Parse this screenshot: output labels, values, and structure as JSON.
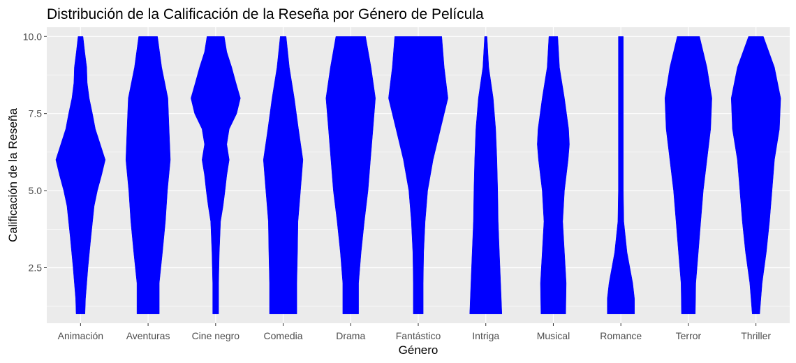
{
  "chart_data": {
    "type": "violin",
    "title": "Distribución de la Calificación de la Reseña por Género de Película",
    "xlabel": "Género",
    "ylabel": "Calificación de la Reseña",
    "ylim": [
      0.7,
      10.3
    ],
    "yticks": [
      2.5,
      5.0,
      7.5,
      10.0
    ],
    "ytick_labels": [
      "2.5",
      "5.0",
      "7.5",
      "10.0"
    ],
    "fill_color": "#0000ff",
    "panel_color": "#ebebeb",
    "grid": true,
    "legend": "none",
    "categories": [
      "Animación",
      "Aventuras",
      "Cine negro",
      "Comedia",
      "Drama",
      "Fantástico",
      "Intriga",
      "Musical",
      "Romance",
      "Terror",
      "Thriller"
    ],
    "series": [
      {
        "values": [
          {
            "y": 1,
            "d": 0.18
          },
          {
            "y": 1.5,
            "d": 0.2
          },
          {
            "y": 2.5,
            "d": 0.3
          },
          {
            "y": 3.5,
            "d": 0.42
          },
          {
            "y": 4.5,
            "d": 0.55
          },
          {
            "y": 5,
            "d": 0.68
          },
          {
            "y": 5.5,
            "d": 0.85
          },
          {
            "y": 6,
            "d": 1
          },
          {
            "y": 6.5,
            "d": 0.8
          },
          {
            "y": 7,
            "d": 0.6
          },
          {
            "y": 7.5,
            "d": 0.48
          },
          {
            "y": 8,
            "d": 0.35
          },
          {
            "y": 8.5,
            "d": 0.27
          },
          {
            "y": 9,
            "d": 0.25
          },
          {
            "y": 9.5,
            "d": 0.17
          },
          {
            "y": 10,
            "d": 0.1
          }
        ]
      },
      {
        "values": [
          {
            "y": 1,
            "d": 0.45
          },
          {
            "y": 2,
            "d": 0.45
          },
          {
            "y": 3,
            "d": 0.58
          },
          {
            "y": 4,
            "d": 0.7
          },
          {
            "y": 5,
            "d": 0.78
          },
          {
            "y": 6,
            "d": 0.9
          },
          {
            "y": 7,
            "d": 0.85
          },
          {
            "y": 8,
            "d": 0.8
          },
          {
            "y": 9,
            "d": 0.55
          },
          {
            "y": 10,
            "d": 0.38
          }
        ]
      },
      {
        "values": [
          {
            "y": 1,
            "d": 0.12
          },
          {
            "y": 2,
            "d": 0.12
          },
          {
            "y": 3,
            "d": 0.15
          },
          {
            "y": 4,
            "d": 0.2
          },
          {
            "y": 4.5,
            "d": 0.3
          },
          {
            "y": 5,
            "d": 0.38
          },
          {
            "y": 5.5,
            "d": 0.45
          },
          {
            "y": 6,
            "d": 0.55
          },
          {
            "y": 6.5,
            "d": 0.45
          },
          {
            "y": 7,
            "d": 0.55
          },
          {
            "y": 7.5,
            "d": 0.85
          },
          {
            "y": 8,
            "d": 1
          },
          {
            "y": 8.5,
            "d": 0.82
          },
          {
            "y": 9,
            "d": 0.65
          },
          {
            "y": 9.5,
            "d": 0.45
          },
          {
            "y": 10,
            "d": 0.35
          }
        ]
      },
      {
        "values": [
          {
            "y": 1,
            "d": 0.55
          },
          {
            "y": 2,
            "d": 0.55
          },
          {
            "y": 3,
            "d": 0.58
          },
          {
            "y": 4,
            "d": 0.6
          },
          {
            "y": 5,
            "d": 0.7
          },
          {
            "y": 6,
            "d": 0.8
          },
          {
            "y": 7,
            "d": 0.62
          },
          {
            "y": 8,
            "d": 0.45
          },
          {
            "y": 9,
            "d": 0.25
          },
          {
            "y": 10,
            "d": 0.12
          }
        ]
      },
      {
        "values": [
          {
            "y": 1,
            "d": 0.32
          },
          {
            "y": 2,
            "d": 0.32
          },
          {
            "y": 3,
            "d": 0.42
          },
          {
            "y": 4,
            "d": 0.55
          },
          {
            "y": 5,
            "d": 0.7
          },
          {
            "y": 6,
            "d": 0.8
          },
          {
            "y": 7,
            "d": 0.9
          },
          {
            "y": 8,
            "d": 1
          },
          {
            "y": 9,
            "d": 0.82
          },
          {
            "y": 10,
            "d": 0.6
          }
        ]
      },
      {
        "values": [
          {
            "y": 1,
            "d": 0.2
          },
          {
            "y": 2,
            "d": 0.2
          },
          {
            "y": 3,
            "d": 0.22
          },
          {
            "y": 4,
            "d": 0.28
          },
          {
            "y": 5,
            "d": 0.38
          },
          {
            "y": 6,
            "d": 0.6
          },
          {
            "y": 7,
            "d": 0.9
          },
          {
            "y": 8,
            "d": 1.2
          },
          {
            "y": 9,
            "d": 1.05
          },
          {
            "y": 10,
            "d": 0.95
          }
        ]
      },
      {
        "values": [
          {
            "y": 1,
            "d": 0.65
          },
          {
            "y": 2,
            "d": 0.6
          },
          {
            "y": 3,
            "d": 0.55
          },
          {
            "y": 4,
            "d": 0.5
          },
          {
            "y": 5,
            "d": 0.48
          },
          {
            "y": 6,
            "d": 0.45
          },
          {
            "y": 7,
            "d": 0.4
          },
          {
            "y": 8,
            "d": 0.3
          },
          {
            "y": 9,
            "d": 0.12
          },
          {
            "y": 10,
            "d": 0.05
          }
        ]
      },
      {
        "values": [
          {
            "y": 1,
            "d": 0.5
          },
          {
            "y": 2,
            "d": 0.52
          },
          {
            "y": 3,
            "d": 0.45
          },
          {
            "y": 4,
            "d": 0.38
          },
          {
            "y": 5,
            "d": 0.45
          },
          {
            "y": 6,
            "d": 0.6
          },
          {
            "y": 6.5,
            "d": 0.65
          },
          {
            "y": 7,
            "d": 0.62
          },
          {
            "y": 8,
            "d": 0.45
          },
          {
            "y": 9,
            "d": 0.25
          },
          {
            "y": 10,
            "d": 0.18
          }
        ]
      },
      {
        "values": [
          {
            "y": 1,
            "d": 0.55
          },
          {
            "y": 1.5,
            "d": 0.55
          },
          {
            "y": 2,
            "d": 0.48
          },
          {
            "y": 3,
            "d": 0.25
          },
          {
            "y": 4,
            "d": 0.12
          },
          {
            "y": 5,
            "d": 0.1
          },
          {
            "y": 6,
            "d": 0.1
          },
          {
            "y": 7,
            "d": 0.1
          },
          {
            "y": 8,
            "d": 0.1
          },
          {
            "y": 9,
            "d": 0.1
          },
          {
            "y": 10,
            "d": 0.1
          }
        ]
      },
      {
        "values": [
          {
            "y": 1,
            "d": 0.28
          },
          {
            "y": 2,
            "d": 0.3
          },
          {
            "y": 3,
            "d": 0.4
          },
          {
            "y": 4,
            "d": 0.5
          },
          {
            "y": 5,
            "d": 0.6
          },
          {
            "y": 6,
            "d": 0.75
          },
          {
            "y": 7,
            "d": 0.9
          },
          {
            "y": 8,
            "d": 0.95
          },
          {
            "y": 9,
            "d": 0.75
          },
          {
            "y": 10,
            "d": 0.45
          }
        ]
      },
      {
        "values": [
          {
            "y": 1,
            "d": 0.15
          },
          {
            "y": 2,
            "d": 0.25
          },
          {
            "y": 3,
            "d": 0.42
          },
          {
            "y": 4,
            "d": 0.55
          },
          {
            "y": 5,
            "d": 0.65
          },
          {
            "y": 6,
            "d": 0.75
          },
          {
            "y": 7,
            "d": 0.95
          },
          {
            "y": 8,
            "d": 1
          },
          {
            "y": 9,
            "d": 0.75
          },
          {
            "y": 10,
            "d": 0.3
          }
        ]
      }
    ]
  }
}
